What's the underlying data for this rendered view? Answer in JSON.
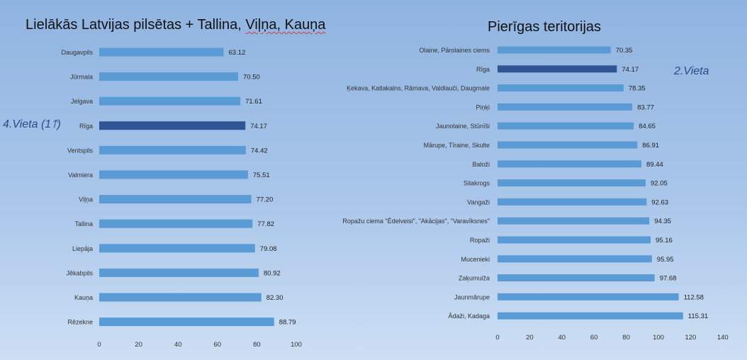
{
  "chart_data": [
    {
      "type": "bar",
      "orientation": "horizontal",
      "title_parts": [
        "Lielākās Latvijas pilsētas + Tallina, ",
        "Viļņa, Kauņa"
      ],
      "categories": [
        "Daugavpils",
        "Jūrmala",
        "Jelgava",
        "Rīga",
        "Ventspils",
        "Valmiera",
        "Viļņa",
        "Tallina",
        "Liepāja",
        "Jēkabpils",
        "Kauņa",
        "Rēzekne"
      ],
      "values": [
        63.12,
        70.5,
        71.61,
        74.17,
        74.42,
        75.51,
        77.2,
        77.82,
        79.08,
        80.92,
        82.3,
        88.79
      ],
      "value_labels": [
        "63.12",
        "70.50",
        "71.61",
        "74.17",
        "74.42",
        "75.51",
        "77.20",
        "77.82",
        "79.08",
        "80.92",
        "82.30",
        "88.79"
      ],
      "highlight": "Rīga",
      "xlim": [
        0,
        100
      ],
      "xticks": [
        0,
        20,
        40,
        60,
        80,
        100
      ],
      "grid": false,
      "annotation": "4.Vieta (1🡑)"
    },
    {
      "type": "bar",
      "orientation": "horizontal",
      "title": "Pierīgas teritorijas",
      "categories": [
        "Olaine, Pārolaines ciems",
        "Rīga",
        "Ķekava, Katlakalns, Rāmava, Valdlauči, Daugmale",
        "Piņķi",
        "Jaunolaine, Stūnīši",
        "Mārupe, Tīraine, Skulte",
        "Baloži",
        "Silakrogs",
        "Vangaži",
        "Ropažu ciema \"Ēdelveisi\", \"Akācijas\", \"Varavīksnes\"",
        "Ropaži",
        "Mucenieki",
        "Zaķumuiža",
        "Jaunmārupe",
        "Ādaži, Kadaga"
      ],
      "values": [
        70.35,
        74.17,
        78.35,
        83.77,
        84.65,
        86.91,
        89.44,
        92.05,
        92.63,
        94.35,
        95.16,
        95.95,
        97.68,
        112.58,
        115.31
      ],
      "value_labels": [
        "70.35",
        "74.17",
        "78.35",
        "83.77",
        "84.65",
        "86.91",
        "89.44",
        "92.05",
        "92.63",
        "94.35",
        "95.16",
        "95.95",
        "97.68",
        "112.58",
        "115.31"
      ],
      "highlight": "Rīga",
      "xlim": [
        0,
        140
      ],
      "xticks": [
        0,
        20,
        40,
        60,
        80,
        100,
        120,
        140
      ],
      "grid": false,
      "annotation": "2.Vieta"
    }
  ],
  "colors": {
    "bar": "#5b9bd5",
    "bar_highlight": "#2f5597",
    "background_top": "#8fb4e0",
    "background_bottom": "#cddff4",
    "annotation": "#2b4a8a"
  }
}
